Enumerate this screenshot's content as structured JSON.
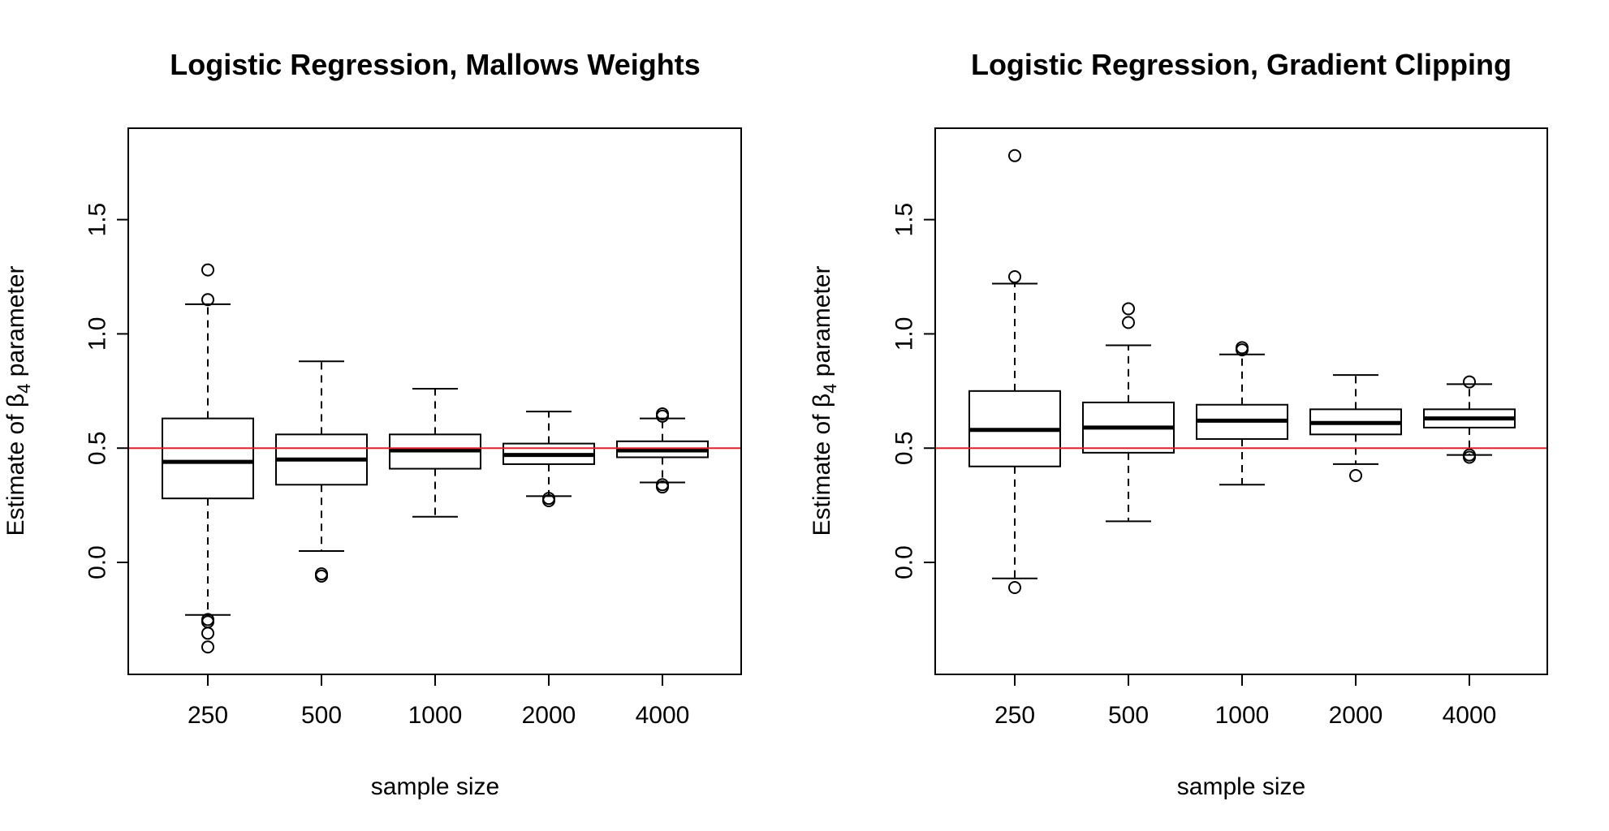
{
  "chart_data": [
    {
      "type": "boxplot",
      "title": "Logistic Regression, Mallows Weights",
      "xlabel": "sample size",
      "ylabel_prefix": "Estimate of ",
      "ylabel_symbol": "β",
      "ylabel_subscript": "4",
      "ylabel_suffix": " parameter",
      "categories": [
        "250",
        "500",
        "1000",
        "2000",
        "4000"
      ],
      "yticks": [
        0.0,
        0.5,
        1.0,
        1.5
      ],
      "ytick_labels": [
        "0.0",
        "0.5",
        "1.0",
        "1.5"
      ],
      "ylim": [
        -0.49,
        1.9
      ],
      "reference_line": {
        "value": 0.5,
        "color": "#e0202a"
      },
      "boxes": [
        {
          "lower_whisker": -0.23,
          "q1": 0.28,
          "median": 0.44,
          "q3": 0.63,
          "upper_whisker": 1.13,
          "outliers": [
            1.28,
            1.15,
            -0.25,
            -0.26,
            -0.31,
            -0.37
          ]
        },
        {
          "lower_whisker": 0.05,
          "q1": 0.34,
          "median": 0.45,
          "q3": 0.56,
          "upper_whisker": 0.88,
          "outliers": [
            -0.05,
            -0.06
          ]
        },
        {
          "lower_whisker": 0.2,
          "q1": 0.41,
          "median": 0.49,
          "q3": 0.56,
          "upper_whisker": 0.76,
          "outliers": []
        },
        {
          "lower_whisker": 0.29,
          "q1": 0.43,
          "median": 0.47,
          "q3": 0.52,
          "upper_whisker": 0.66,
          "outliers": [
            0.28,
            0.27
          ]
        },
        {
          "lower_whisker": 0.35,
          "q1": 0.46,
          "median": 0.49,
          "q3": 0.53,
          "upper_whisker": 0.63,
          "outliers": [
            0.65,
            0.64,
            0.34,
            0.33
          ]
        }
      ]
    },
    {
      "type": "boxplot",
      "title": "Logistic Regression, Gradient Clipping",
      "xlabel": "sample size",
      "ylabel_prefix": "Estimate of ",
      "ylabel_symbol": "β",
      "ylabel_subscript": "4",
      "ylabel_suffix": " parameter",
      "categories": [
        "250",
        "500",
        "1000",
        "2000",
        "4000"
      ],
      "yticks": [
        0.0,
        0.5,
        1.0,
        1.5
      ],
      "ytick_labels": [
        "0.0",
        "0.5",
        "1.0",
        "1.5"
      ],
      "ylim": [
        -0.49,
        1.9
      ],
      "reference_line": {
        "value": 0.5,
        "color": "#e0202a"
      },
      "boxes": [
        {
          "lower_whisker": -0.07,
          "q1": 0.42,
          "median": 0.58,
          "q3": 0.75,
          "upper_whisker": 1.22,
          "outliers": [
            1.78,
            1.25,
            -0.11
          ]
        },
        {
          "lower_whisker": 0.18,
          "q1": 0.48,
          "median": 0.59,
          "q3": 0.7,
          "upper_whisker": 0.95,
          "outliers": [
            1.11,
            1.05
          ]
        },
        {
          "lower_whisker": 0.34,
          "q1": 0.54,
          "median": 0.62,
          "q3": 0.69,
          "upper_whisker": 0.91,
          "outliers": [
            0.94,
            0.93
          ]
        },
        {
          "lower_whisker": 0.43,
          "q1": 0.56,
          "median": 0.61,
          "q3": 0.67,
          "upper_whisker": 0.82,
          "outliers": [
            0.38
          ]
        },
        {
          "lower_whisker": 0.47,
          "q1": 0.59,
          "median": 0.63,
          "q3": 0.67,
          "upper_whisker": 0.78,
          "outliers": [
            0.79,
            0.47,
            0.46
          ]
        }
      ]
    }
  ]
}
